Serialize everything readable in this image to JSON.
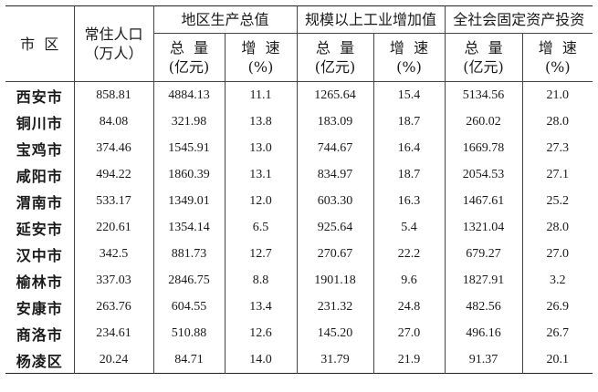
{
  "header": {
    "district": "市  区",
    "population": [
      "常住人口",
      "（万人）"
    ],
    "groups": [
      "地区生产总值",
      "规模以上工业增加值",
      "全社会固定资产投资"
    ],
    "total": [
      "总  量",
      "(亿元)"
    ],
    "growth": [
      "增  速",
      "(%)"
    ]
  },
  "rows": [
    {
      "city": "西安市",
      "pop": "858.81",
      "gdp": "4884.13",
      "gdp_g": "11.1",
      "ind": "1265.64",
      "ind_g": "15.4",
      "inv": "5134.56",
      "inv_g": "21.0"
    },
    {
      "city": "铜川市",
      "pop": "84.08",
      "gdp": "321.98",
      "gdp_g": "13.8",
      "ind": "183.09",
      "ind_g": "18.7",
      "inv": "260.02",
      "inv_g": "28.0"
    },
    {
      "city": "宝鸡市",
      "pop": "374.46",
      "gdp": "1545.91",
      "gdp_g": "13.0",
      "ind": "744.67",
      "ind_g": "16.4",
      "inv": "1669.78",
      "inv_g": "27.3"
    },
    {
      "city": "咸阳市",
      "pop": "494.22",
      "gdp": "1860.39",
      "gdp_g": "13.1",
      "ind": "834.97",
      "ind_g": "18.7",
      "inv": "2054.53",
      "inv_g": "27.1"
    },
    {
      "city": "渭南市",
      "pop": "533.17",
      "gdp": "1349.01",
      "gdp_g": "12.0",
      "ind": "603.30",
      "ind_g": "16.3",
      "inv": "1467.61",
      "inv_g": "25.2"
    },
    {
      "city": "延安市",
      "pop": "220.61",
      "gdp": "1354.14",
      "gdp_g": "6.5",
      "ind": "925.64",
      "ind_g": "5.4",
      "inv": "1321.04",
      "inv_g": "28.0"
    },
    {
      "city": "汉中市",
      "pop": "342.5",
      "gdp": "881.73",
      "gdp_g": "12.7",
      "ind": "270.67",
      "ind_g": "22.2",
      "inv": "679.27",
      "inv_g": "27.0"
    },
    {
      "city": "榆林市",
      "pop": "337.03",
      "gdp": "2846.75",
      "gdp_g": "8.8",
      "ind": "1901.18",
      "ind_g": "9.6",
      "inv": "1827.91",
      "inv_g": "3.2"
    },
    {
      "city": "安康市",
      "pop": "263.76",
      "gdp": "604.55",
      "gdp_g": "13.4",
      "ind": "231.32",
      "ind_g": "24.8",
      "inv": "482.56",
      "inv_g": "26.9"
    },
    {
      "city": "商洛市",
      "pop": "234.61",
      "gdp": "510.88",
      "gdp_g": "12.6",
      "ind": "145.20",
      "ind_g": "27.0",
      "inv": "496.16",
      "inv_g": "26.7"
    },
    {
      "city": "杨凌区",
      "pop": "20.24",
      "gdp": "84.71",
      "gdp_g": "14.0",
      "ind": "31.79",
      "ind_g": "21.9",
      "inv": "91.37",
      "inv_g": "20.1"
    }
  ]
}
